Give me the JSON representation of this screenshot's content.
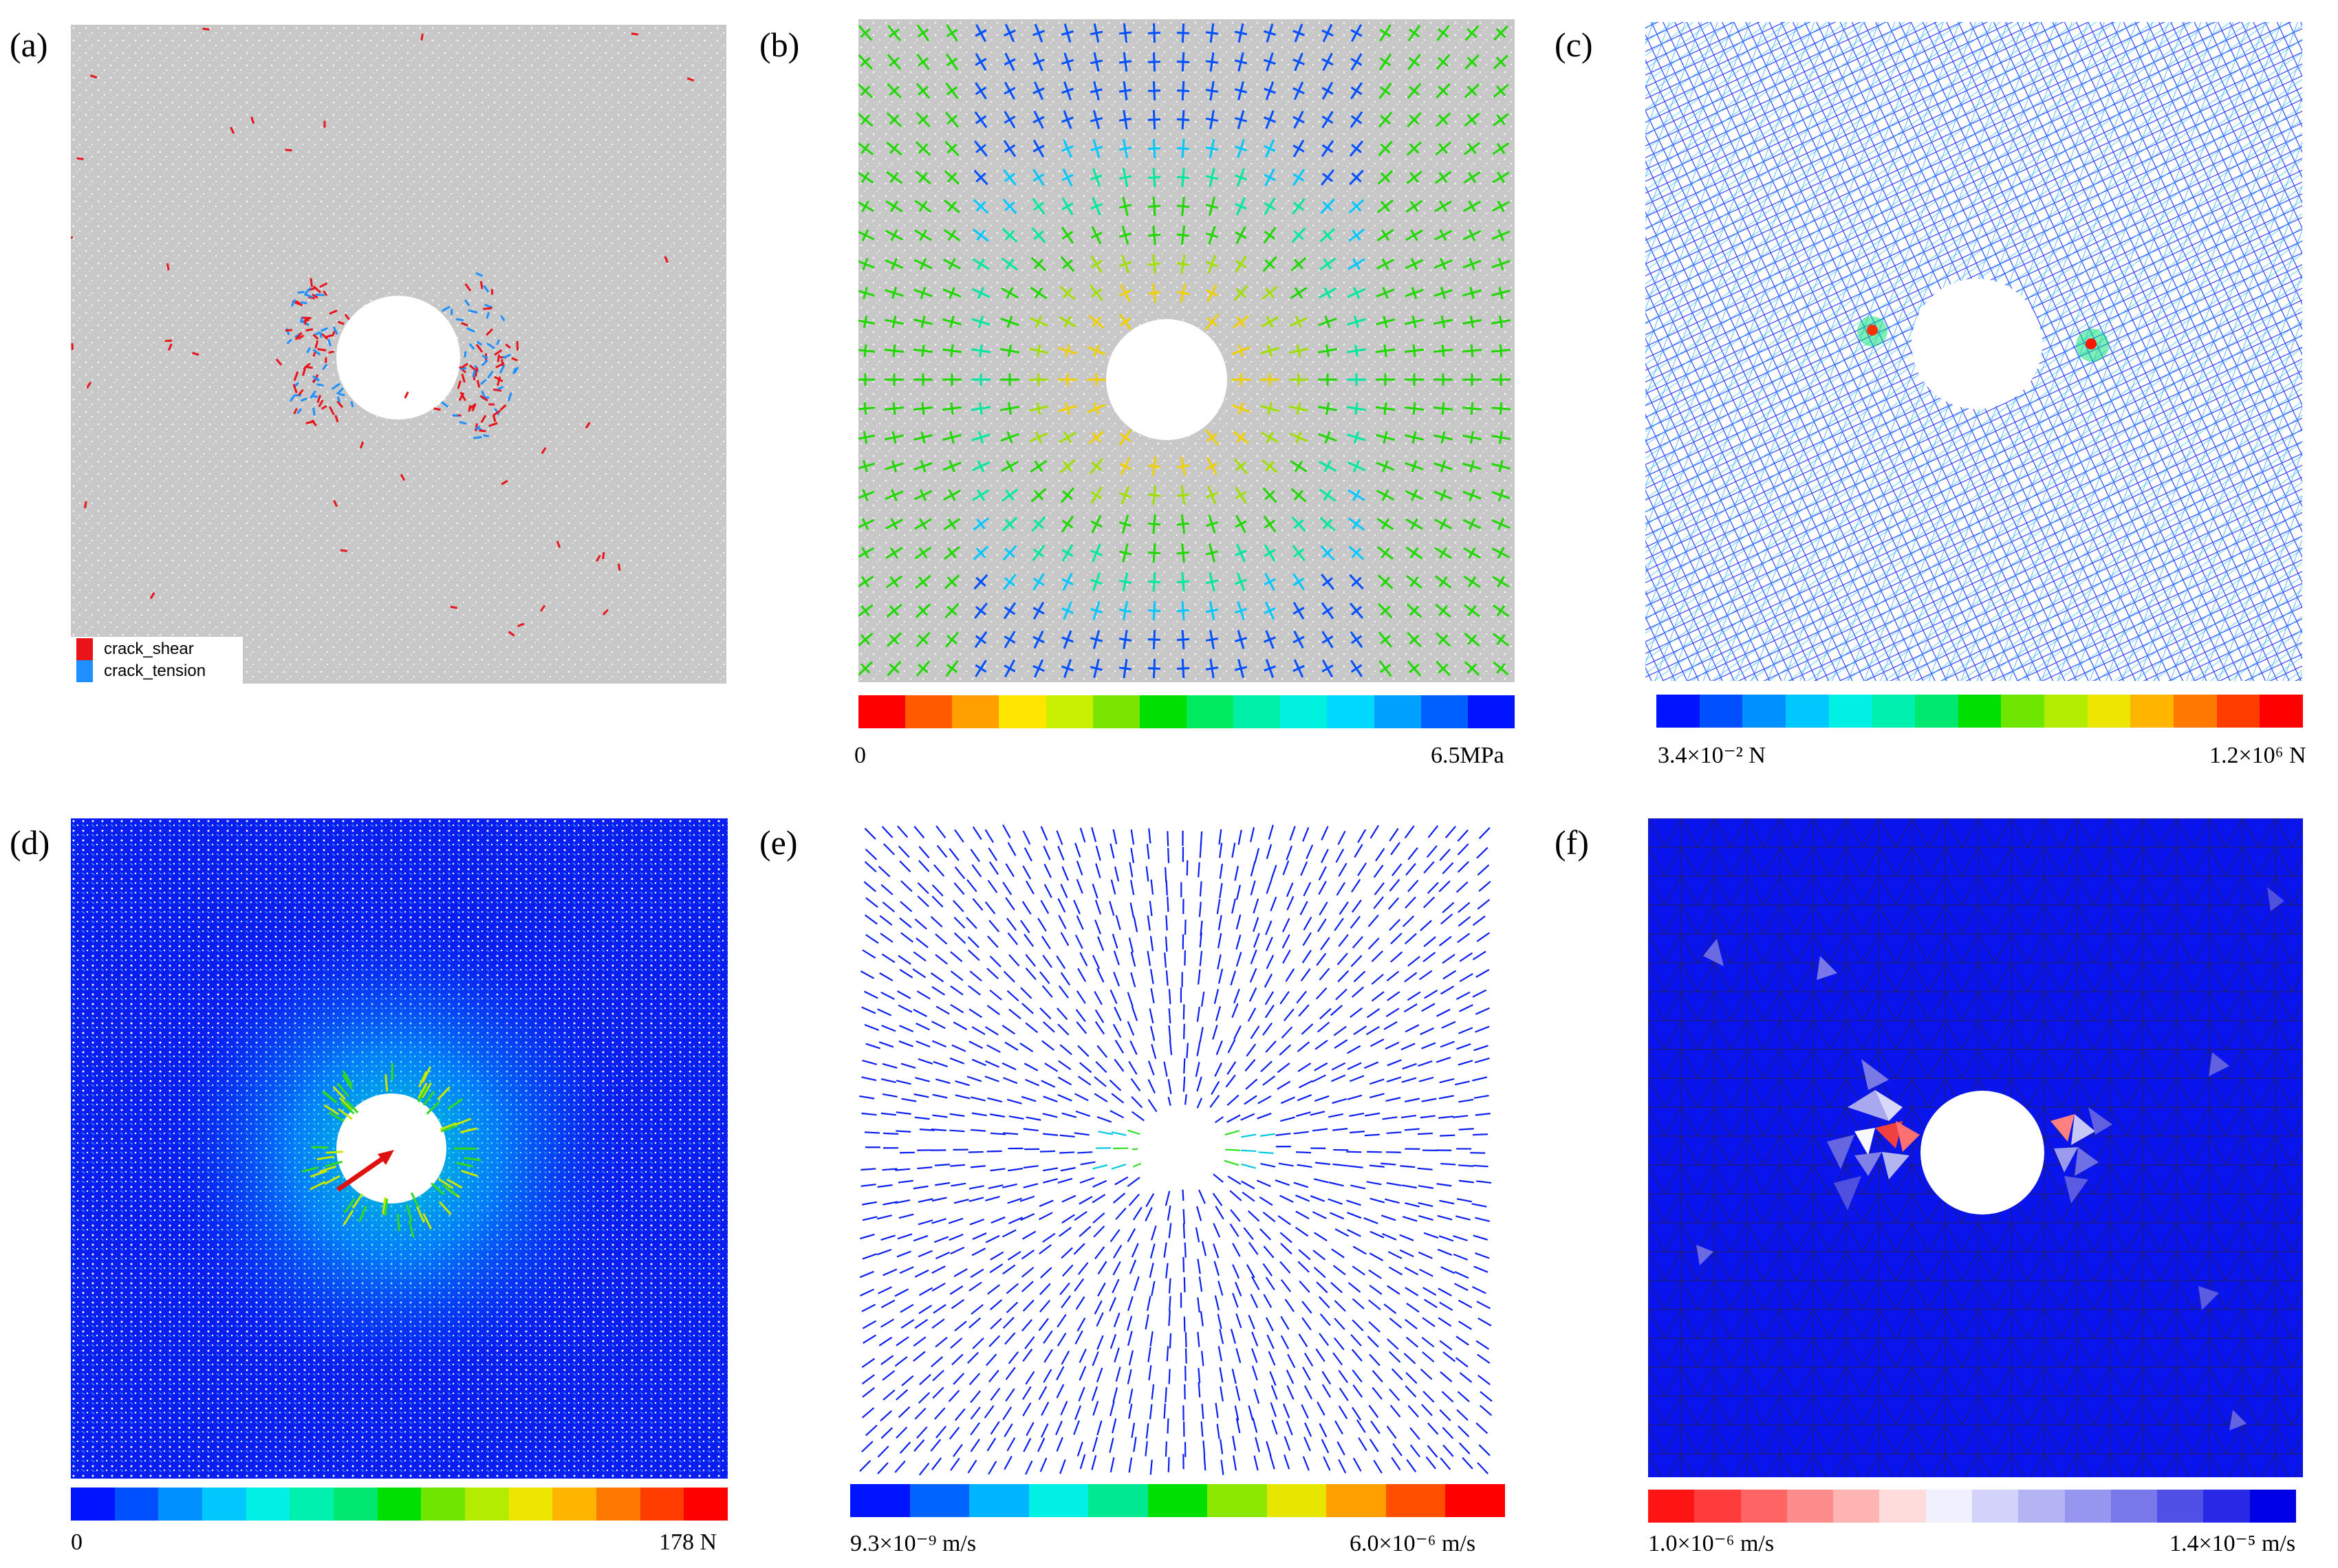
{
  "panels": {
    "a": {
      "label": "(a)",
      "legend": [
        {
          "name": "crack_shear",
          "color": "#e8141a"
        },
        {
          "name": "crack_tension",
          "color": "#1e90ff"
        }
      ]
    },
    "b": {
      "label": "(b)",
      "colorbar": {
        "min_label": "0",
        "max_label": "6.5MPa",
        "colors": [
          "#ff0000",
          "#ff5a00",
          "#ffa000",
          "#ffe600",
          "#c8f000",
          "#7ae600",
          "#00e000",
          "#00ea60",
          "#00f0a8",
          "#00f0e0",
          "#00d8ff",
          "#00a0ff",
          "#0060ff",
          "#0014ff"
        ]
      }
    },
    "c": {
      "label": "(c)",
      "colorbar": {
        "min_label": "3.4×10⁻² N",
        "max_label": "1.2×10⁶ N",
        "colors": [
          "#0014ff",
          "#0050ff",
          "#0090ff",
          "#00c8ff",
          "#00f0e6",
          "#00f0b0",
          "#00e870",
          "#00e000",
          "#6ee600",
          "#b4ec00",
          "#ece600",
          "#ffb400",
          "#ff7800",
          "#ff3c00",
          "#ff0000"
        ]
      }
    },
    "d": {
      "label": "(d)",
      "colorbar": {
        "min_label": "0",
        "max_label": "178 N",
        "colors": [
          "#0014ff",
          "#0050ff",
          "#0090ff",
          "#00c8ff",
          "#00f0e6",
          "#00f0b0",
          "#00e870",
          "#00e000",
          "#6ee600",
          "#b4ec00",
          "#ece600",
          "#ffb400",
          "#ff7800",
          "#ff3c00",
          "#ff0000"
        ]
      }
    },
    "e": {
      "label": "(e)",
      "colorbar": {
        "min_label": "9.3×10⁻⁹ m/s",
        "max_label": "6.0×10⁻⁶ m/s",
        "colors": [
          "#0014ff",
          "#0064ff",
          "#00b4ff",
          "#00f0e6",
          "#00e890",
          "#00e000",
          "#8ce800",
          "#e6e600",
          "#ffa000",
          "#ff5000",
          "#ff0000"
        ]
      }
    },
    "f": {
      "label": "(f)",
      "colorbar": {
        "min_label": "1.0×10⁻⁶ m/s",
        "max_label": "1.4×10⁻⁵ m/s",
        "colors": [
          "#ff1414",
          "#ff3c3c",
          "#ff6464",
          "#ff8c8c",
          "#ffb4b4",
          "#ffdcdc",
          "#f0f0ff",
          "#d2d2fa",
          "#b4b4f5",
          "#9696f0",
          "#7878eb",
          "#5050e6",
          "#2828e6",
          "#0000e6"
        ]
      }
    }
  }
}
